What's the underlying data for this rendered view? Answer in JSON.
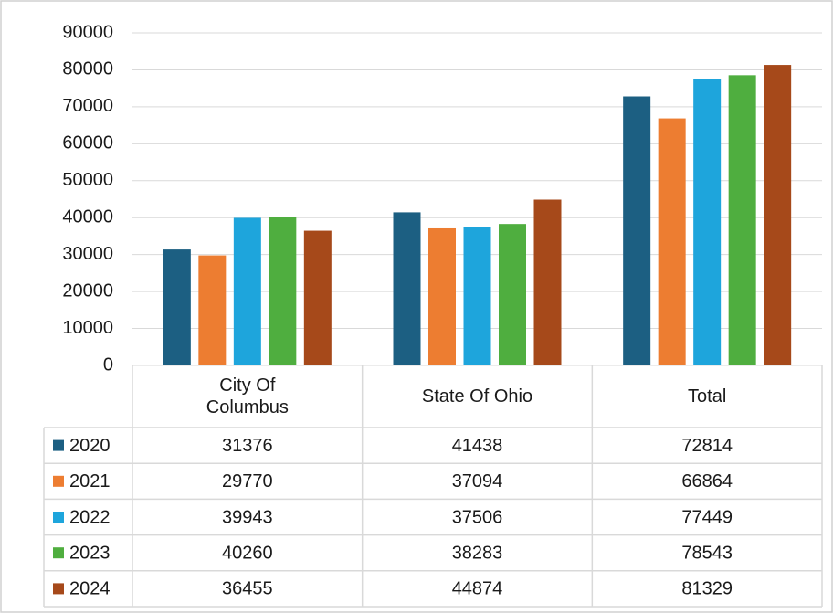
{
  "chart_data": {
    "type": "bar",
    "categories": [
      "City Of Columbus",
      "State Of Ohio",
      "Total"
    ],
    "series": [
      {
        "name": "2020",
        "color": "#1c5f82",
        "values": [
          31376,
          41438,
          72814
        ]
      },
      {
        "name": "2021",
        "color": "#ed7d31",
        "values": [
          29770,
          37094,
          66864
        ]
      },
      {
        "name": "2022",
        "color": "#1ea5dc",
        "values": [
          39943,
          37506,
          77449
        ]
      },
      {
        "name": "2023",
        "color": "#4fae3f",
        "values": [
          40260,
          38283,
          78543
        ]
      },
      {
        "name": "2024",
        "color": "#a6491a",
        "values": [
          36455,
          44874,
          81329
        ]
      }
    ],
    "ylim": [
      0,
      90000
    ],
    "yticks": [
      0,
      10000,
      20000,
      30000,
      40000,
      50000,
      60000,
      70000,
      80000,
      90000
    ],
    "grid": true
  }
}
